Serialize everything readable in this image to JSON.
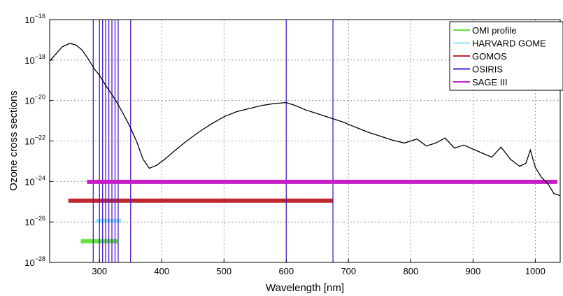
{
  "chart_data": {
    "type": "line",
    "xlabel": "Wavelength [nm]",
    "ylabel": "Ozone cross sections",
    "xlim": [
      220,
      1040
    ],
    "y_log_range": [
      -28,
      -16
    ],
    "y_scale": "log",
    "grid": true,
    "legend_position": "top-right",
    "x_ticks": [
      {
        "value": 300,
        "label": "300"
      },
      {
        "value": 400,
        "label": "400"
      },
      {
        "value": 500,
        "label": "500"
      },
      {
        "value": 600,
        "label": "600"
      },
      {
        "value": 700,
        "label": "700"
      },
      {
        "value": 800,
        "label": "800"
      },
      {
        "value": 900,
        "label": "900"
      },
      {
        "value": 1000,
        "label": "1000"
      }
    ],
    "y_ticks": [
      {
        "exp": -16,
        "base": "10",
        "sup": "−16"
      },
      {
        "exp": -18,
        "base": "10",
        "sup": "−18"
      },
      {
        "exp": -20,
        "base": "10",
        "sup": "−20"
      },
      {
        "exp": -22,
        "base": "10",
        "sup": "−22"
      },
      {
        "exp": -24,
        "base": "10",
        "sup": "−24"
      },
      {
        "exp": -26,
        "base": "10",
        "sup": "−26"
      },
      {
        "exp": -28,
        "base": "10",
        "sup": "−28"
      }
    ],
    "cross_section": {
      "color": "#000000",
      "points": [
        [
          220,
          -18.05
        ],
        [
          230,
          -17.7
        ],
        [
          240,
          -17.35
        ],
        [
          252,
          -17.18
        ],
        [
          262,
          -17.25
        ],
        [
          272,
          -17.5
        ],
        [
          282,
          -17.95
        ],
        [
          292,
          -18.45
        ],
        [
          300,
          -18.75
        ],
        [
          310,
          -19.25
        ],
        [
          320,
          -19.7
        ],
        [
          330,
          -20.2
        ],
        [
          340,
          -20.75
        ],
        [
          350,
          -21.35
        ],
        [
          360,
          -22.05
        ],
        [
          370,
          -22.9
        ],
        [
          380,
          -23.35
        ],
        [
          392,
          -23.2
        ],
        [
          405,
          -22.9
        ],
        [
          420,
          -22.5
        ],
        [
          440,
          -22.0
        ],
        [
          460,
          -21.55
        ],
        [
          480,
          -21.15
        ],
        [
          500,
          -20.8
        ],
        [
          520,
          -20.55
        ],
        [
          540,
          -20.4
        ],
        [
          560,
          -20.25
        ],
        [
          580,
          -20.15
        ],
        [
          600,
          -20.1
        ],
        [
          615,
          -20.25
        ],
        [
          630,
          -20.45
        ],
        [
          650,
          -20.65
        ],
        [
          670,
          -20.85
        ],
        [
          690,
          -21.05
        ],
        [
          710,
          -21.3
        ],
        [
          730,
          -21.55
        ],
        [
          750,
          -21.75
        ],
        [
          770,
          -21.95
        ],
        [
          790,
          -22.1
        ],
        [
          810,
          -21.9
        ],
        [
          825,
          -22.25
        ],
        [
          840,
          -22.1
        ],
        [
          855,
          -21.85
        ],
        [
          870,
          -22.35
        ],
        [
          885,
          -22.2
        ],
        [
          900,
          -22.4
        ],
        [
          915,
          -22.6
        ],
        [
          930,
          -22.8
        ],
        [
          945,
          -22.3
        ],
        [
          960,
          -22.9
        ],
        [
          975,
          -23.25
        ],
        [
          985,
          -23.1
        ],
        [
          992,
          -22.45
        ],
        [
          1000,
          -23.3
        ],
        [
          1010,
          -23.8
        ],
        [
          1020,
          -24.1
        ],
        [
          1030,
          -24.6
        ],
        [
          1040,
          -24.7
        ]
      ]
    },
    "series": [
      {
        "name": "OMI profile",
        "color": "#66e23c",
        "x_range": [
          270,
          330
        ],
        "level_exp": -26.95
      },
      {
        "name": "HARVARD GOME",
        "color": "#8fe6f4",
        "x_range": [
          295,
          335
        ],
        "level_exp": -25.95
      },
      {
        "name": "GOMOS",
        "color": "#c0272d",
        "x_range": [
          250,
          675
        ],
        "level_exp": -24.95
      },
      {
        "name": "OSIRIS",
        "color": "#4b19d8",
        "vertical_lines_x": [
          290,
          300,
          305,
          310,
          315,
          320,
          325,
          330,
          350,
          600,
          675
        ]
      },
      {
        "name": "SAGE III",
        "color": "#c61fc8",
        "x_range": [
          280,
          1035
        ],
        "level_exp": -24.02
      }
    ]
  }
}
